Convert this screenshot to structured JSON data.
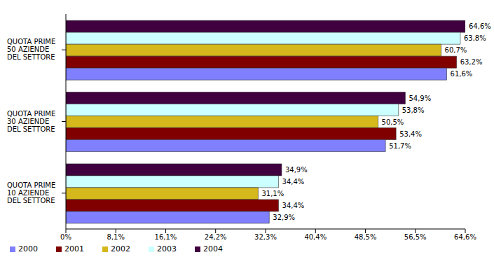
{
  "chart_data": {
    "type": "bar",
    "orientation": "horizontal",
    "categories": [
      "QUOTA PRIME 50 AZIENDE DEL SETTORE",
      "QUOTA PRIME 30 AZIENDE DEL SETTORE",
      "QUOTA PRIME 10 AZIENDE DEL SETTORE"
    ],
    "series": [
      {
        "name": "2004",
        "color": "#400040",
        "values": [
          64.6,
          54.9,
          34.9
        ],
        "value_labels": [
          "64,6%",
          "54,9%",
          "34,9%"
        ]
      },
      {
        "name": "2003",
        "color": "#ccffff",
        "values": [
          63.8,
          53.8,
          34.4
        ],
        "value_labels": [
          "63,8%",
          "53,8%",
          "34,4%"
        ]
      },
      {
        "name": "2002",
        "color": "#d4b81c",
        "values": [
          60.7,
          50.5,
          31.1
        ],
        "value_labels": [
          "60,7%",
          "50,5%",
          "31,1%"
        ]
      },
      {
        "name": "2001",
        "color": "#800000",
        "values": [
          63.2,
          53.4,
          34.4
        ],
        "value_labels": [
          "63,2%",
          "53,4%",
          "34,4%"
        ]
      },
      {
        "name": "2000",
        "color": "#8080ff",
        "values": [
          61.6,
          51.7,
          32.9
        ],
        "value_labels": [
          "61,6%",
          "51,7%",
          "32,9%"
        ]
      }
    ],
    "xlim": [
      0,
      64.6
    ],
    "xticks": [
      {
        "value": 0,
        "label": "0%"
      },
      {
        "value": 8.08,
        "label": "8,1%"
      },
      {
        "value": 16.14,
        "label": "16,1%"
      },
      {
        "value": 24.22,
        "label": "24,2%"
      },
      {
        "value": 32.3,
        "label": "32,3%"
      },
      {
        "value": 40.38,
        "label": "40,4%"
      },
      {
        "value": 48.46,
        "label": "48,5%"
      },
      {
        "value": 56.52,
        "label": "56,5%"
      },
      {
        "value": 64.6,
        "label": "64,6%"
      }
    ],
    "data_labels": true,
    "legend": "bottom",
    "grid": false
  }
}
